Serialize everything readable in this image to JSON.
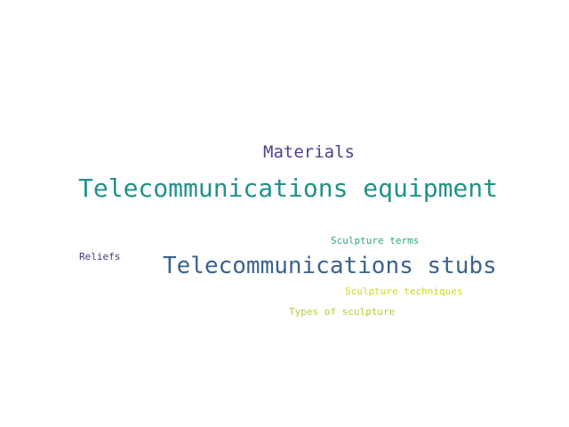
{
  "word_cloud": {
    "words": [
      {
        "key": "materials",
        "text": "Materials",
        "color": "#4f3f8c"
      },
      {
        "key": "tele_equip",
        "text": "Telecommunications equipment",
        "color": "#21918c"
      },
      {
        "key": "sculpt_terms",
        "text": "Sculpture terms",
        "color": "#2ea67e"
      },
      {
        "key": "reliefs",
        "text": "Reliefs",
        "color": "#46337e"
      },
      {
        "key": "tele_stubs",
        "text": "Telecommunications stubs",
        "color": "#3b638d"
      },
      {
        "key": "sculpt_tech",
        "text": "Sculpture techniques",
        "color": "#c8d91f"
      },
      {
        "key": "types",
        "text": "Types of sculpture",
        "color": "#b5cf2a"
      }
    ]
  }
}
